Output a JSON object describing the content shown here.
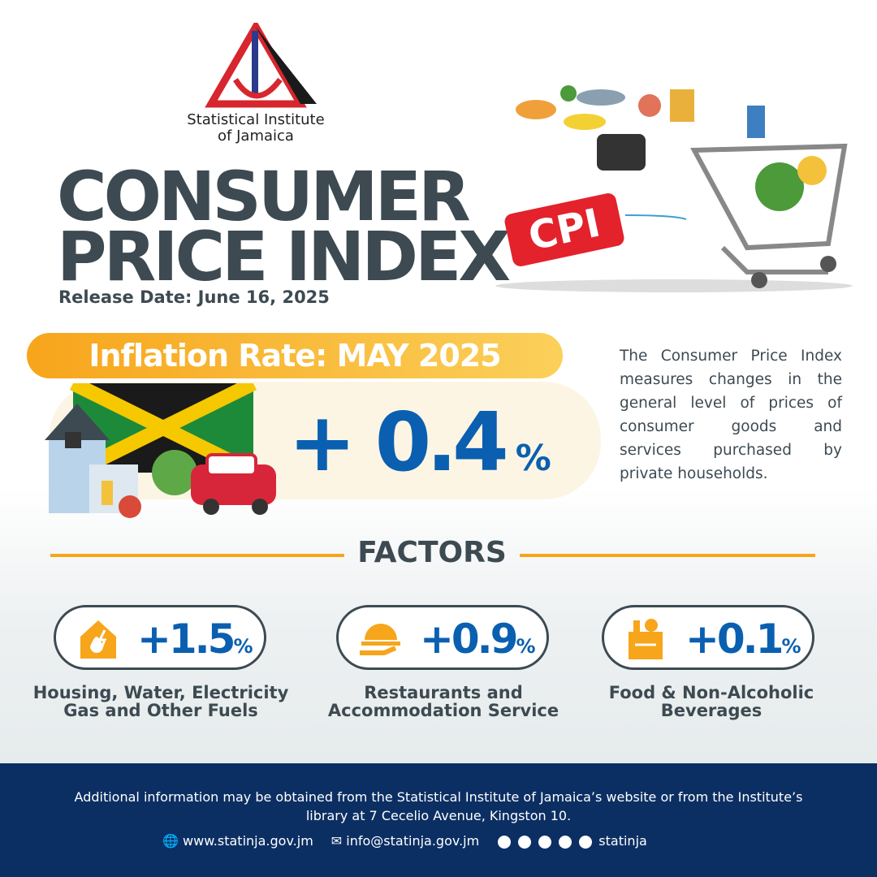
{
  "logo": {
    "name_line1": "Statistical Institute",
    "name_line2": "of Jamaica"
  },
  "header": {
    "title_line1": "CONSUMER",
    "title_line2": "PRICE INDEX",
    "tag": "CPI",
    "release_date": "Release Date: June 16, 2025"
  },
  "inflation": {
    "label": "Inflation Rate: MAY 2025",
    "value": "+ 0.4",
    "unit": "%"
  },
  "description": "The Consumer Price Index measures changes in the general level of prices of consumer goods and services purchased by private households.",
  "factors": {
    "heading": "FACTORS",
    "items": [
      {
        "value": "+1.5",
        "unit": "%",
        "label_line1": "Housing, Water, Electricity",
        "label_line2": "Gas and Other Fuels"
      },
      {
        "value": "+0.9",
        "unit": "%",
        "label_line1": "Restaurants and",
        "label_line2": "Accommodation Service"
      },
      {
        "value": "+0.1",
        "unit": "%",
        "label_line1": "Food & Non-Alcoholic",
        "label_line2": "Beverages"
      }
    ]
  },
  "footer": {
    "note_line1": "Additional information may be obtained from the Statistical Institute of Jamaica’s website or from the Institute’s",
    "note_line2": "library at 7 Cecelio Avenue, Kingston 10.",
    "website": "www.statinja.gov.jm",
    "email": "info@statinja.gov.jm",
    "social": "statinja"
  }
}
